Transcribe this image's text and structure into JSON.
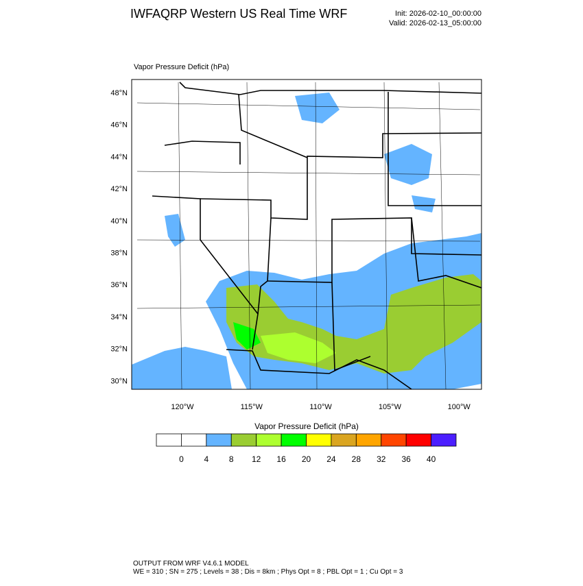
{
  "header": {
    "title": "IWFAQRP Western US Real Time WRF",
    "init": "Init: 2026-02-10_00:00:00",
    "valid": "Valid: 2026-02-13_05:00:00"
  },
  "plot": {
    "title": "Vapor Pressure Deficit   (hPa)",
    "lat_labels": [
      "48°N",
      "46°N",
      "44°N",
      "42°N",
      "40°N",
      "38°N",
      "36°N",
      "34°N",
      "32°N",
      "30°N"
    ],
    "lon_labels": [
      "120°W",
      "115°W",
      "110°W",
      "105°W",
      "100°W"
    ]
  },
  "colorbar": {
    "title": "Vapor Pressure Deficit  (hPa)",
    "colors": [
      "#ffffff",
      "#ffffff",
      "#64b4ff",
      "#9acd32",
      "#adff2f",
      "#00ff00",
      "#ffff00",
      "#daa520",
      "#ffa500",
      "#ff4500",
      "#ff0000",
      "#4b1eff"
    ],
    "labels": [
      "0",
      "4",
      "8",
      "12",
      "16",
      "20",
      "24",
      "28",
      "32",
      "36",
      "40"
    ]
  },
  "footer": {
    "line1": "OUTPUT FROM WRF V4.6.1 MODEL",
    "line2": "WE = 310 ; SN = 275 ; Levels = 38 ; Dis = 8km ; Phys Opt = 8 ; PBL Opt = 1 ; Cu Opt = 3"
  }
}
